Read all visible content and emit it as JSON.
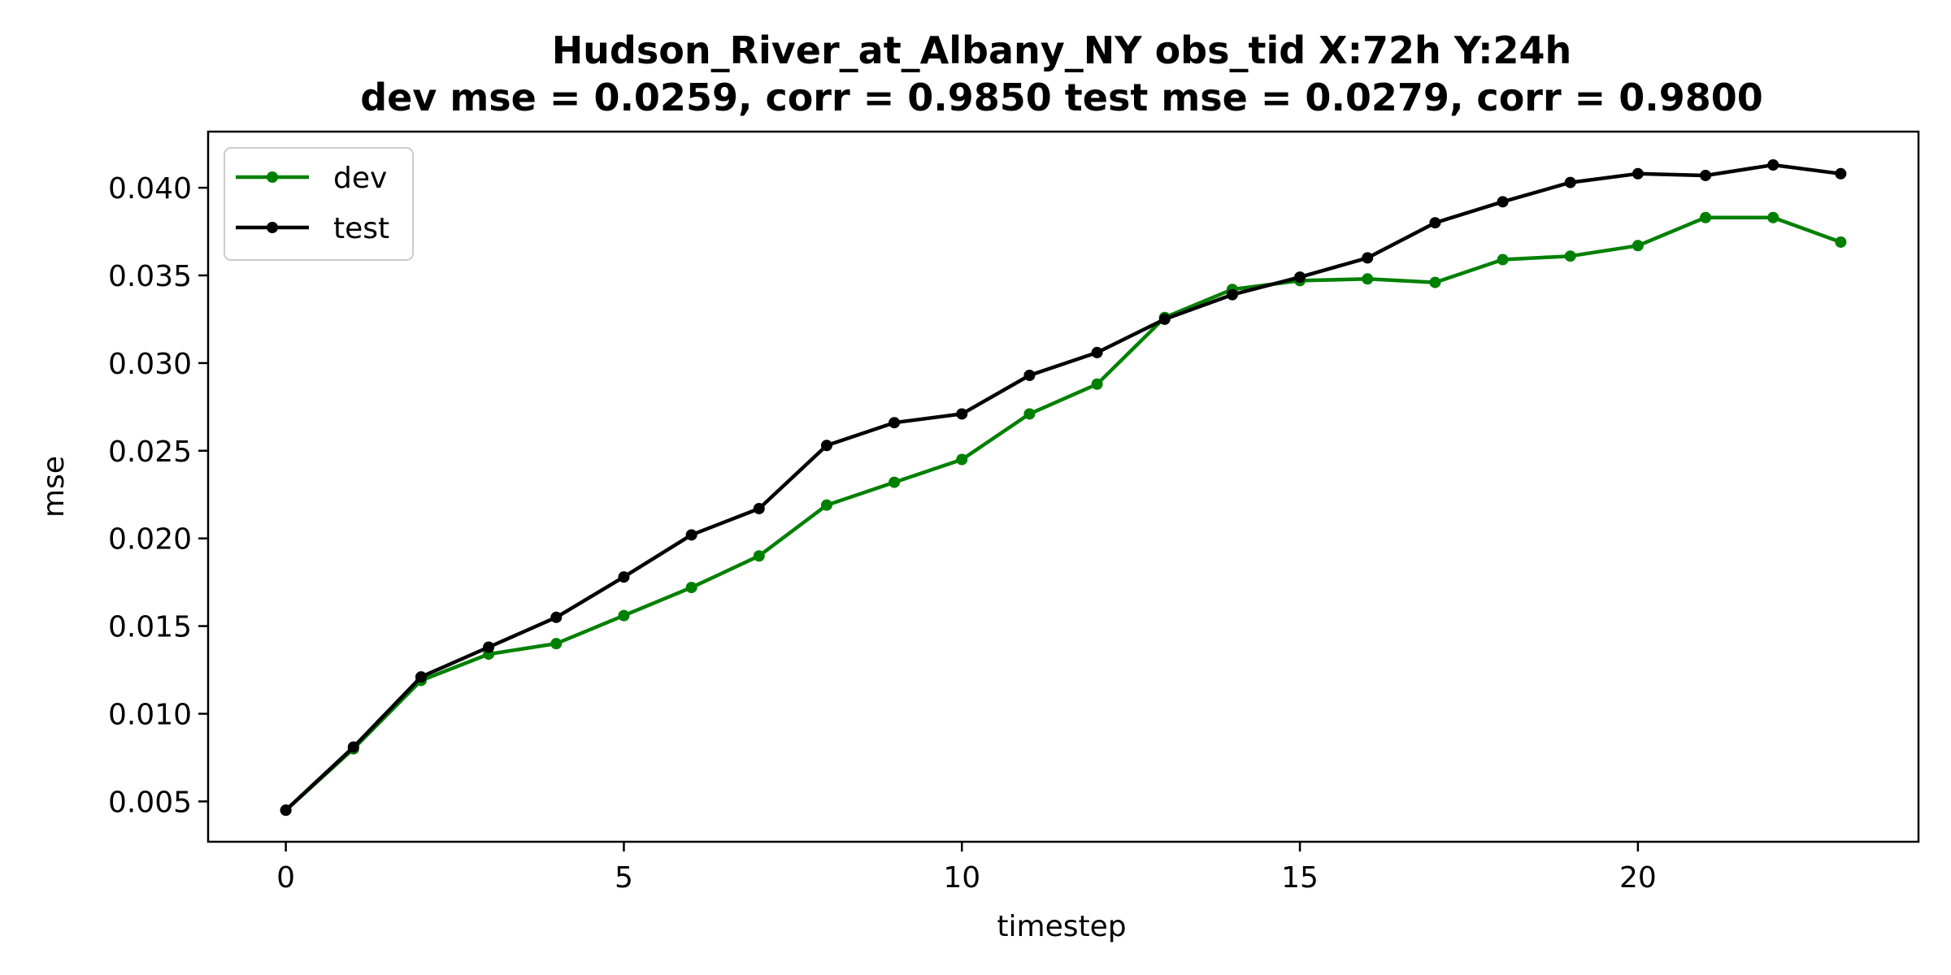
{
  "chart_data": {
    "type": "line",
    "title": "Hudson_River_at_Albany_NY   obs_tid   X:72h   Y:24h",
    "subtitle": "dev mse = 0.0259, corr = 0.9850   test mse = 0.0279, corr = 0.9800",
    "xlabel": "timestep",
    "ylabel": "mse",
    "xlim": [
      -1.15,
      24.15
    ],
    "ylim": [
      0.0027,
      0.0432
    ],
    "xticks": [
      0,
      5,
      10,
      15,
      20
    ],
    "xtick_labels": [
      "0",
      "5",
      "10",
      "15",
      "20"
    ],
    "yticks": [
      0.005,
      0.01,
      0.015,
      0.02,
      0.025,
      0.03,
      0.035,
      0.04
    ],
    "ytick_labels": [
      "0.005",
      "0.010",
      "0.015",
      "0.020",
      "0.025",
      "0.030",
      "0.035",
      "0.040"
    ],
    "grid": false,
    "legend_position": "upper-left",
    "x": [
      0,
      1,
      2,
      3,
      4,
      5,
      6,
      7,
      8,
      9,
      10,
      11,
      12,
      13,
      14,
      15,
      16,
      17,
      18,
      19,
      20,
      21,
      22,
      23
    ],
    "series": [
      {
        "name": "dev",
        "color": "#008000",
        "values": [
          0.0045,
          0.008,
          0.0119,
          0.0134,
          0.014,
          0.0156,
          0.0172,
          0.019,
          0.0219,
          0.0232,
          0.0245,
          0.0271,
          0.0288,
          0.0326,
          0.0342,
          0.0347,
          0.0348,
          0.0346,
          0.0359,
          0.0361,
          0.0367,
          0.0383,
          0.0383,
          0.0369
        ]
      },
      {
        "name": "test",
        "color": "#000000",
        "values": [
          0.0045,
          0.0081,
          0.0121,
          0.0138,
          0.0155,
          0.0178,
          0.0202,
          0.0217,
          0.0253,
          0.0266,
          0.0271,
          0.0293,
          0.0306,
          0.0325,
          0.0339,
          0.0349,
          0.036,
          0.038,
          0.0392,
          0.0403,
          0.0408,
          0.0407,
          0.0413,
          0.0408
        ]
      }
    ]
  }
}
